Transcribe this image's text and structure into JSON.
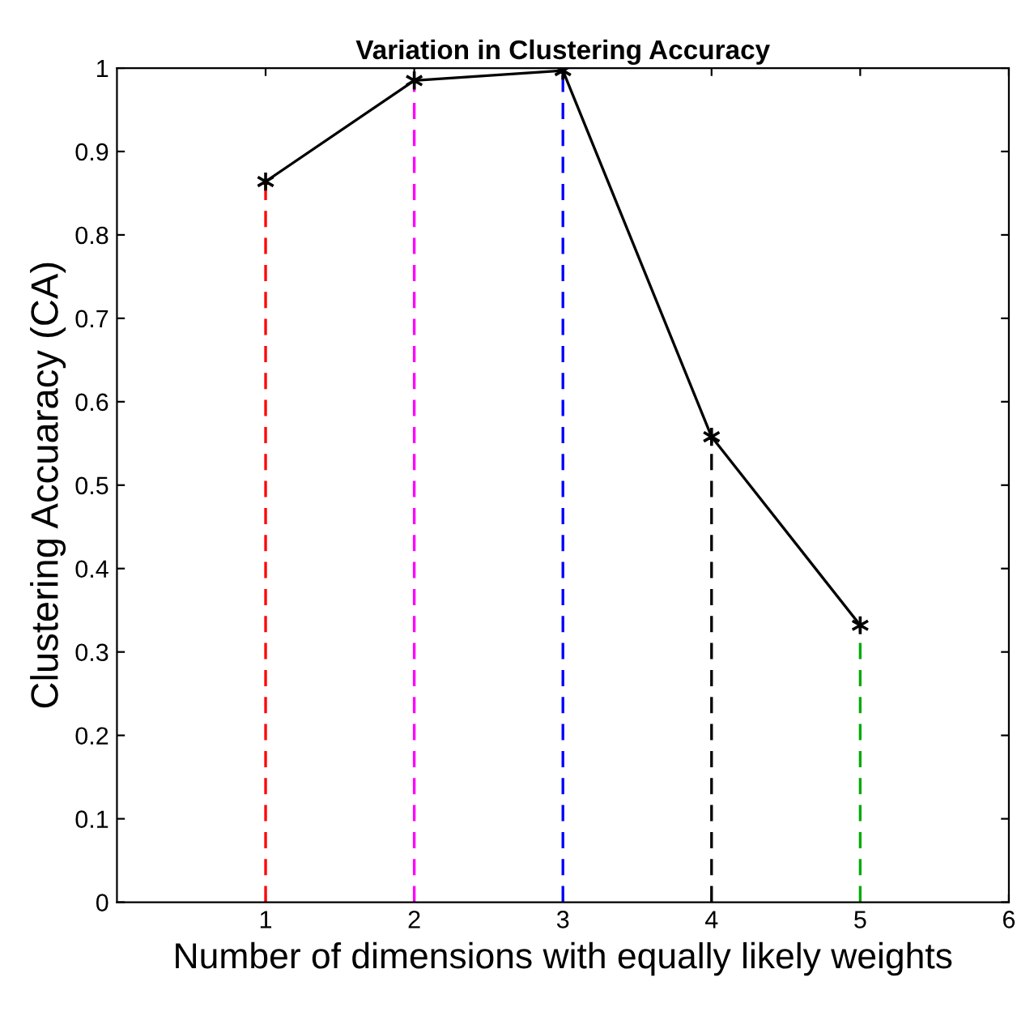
{
  "chart_data": {
    "type": "line",
    "title": "Variation in Clustering Accuracy",
    "xlabel": "Number of dimensions with equally likely weights",
    "ylabel": "Clustering Accuaracy (CA)",
    "x": [
      1,
      2,
      3,
      4,
      5
    ],
    "series": [
      {
        "color": "#000000",
        "marker": "cross",
        "line_style": "solid",
        "values": [
          0.864,
          0.985,
          0.997,
          0.558,
          0.332
        ]
      },
      {
        "color": "#ff0000",
        "marker": "none",
        "line_style": "dashed",
        "x": [
          1,
          1
        ],
        "values": [
          0,
          0.864
        ]
      },
      {
        "color": "#ff00ff",
        "marker": "none",
        "line_style": "dashed",
        "x": [
          2,
          2
        ],
        "values": [
          0,
          0.985
        ]
      },
      {
        "color": "#0000ff",
        "marker": "none",
        "line_style": "dashed",
        "x": [
          3,
          3
        ],
        "values": [
          0,
          0.997
        ]
      },
      {
        "color": "#000000",
        "marker": "none",
        "line_style": "dashed",
        "x": [
          4,
          4
        ],
        "values": [
          0,
          0.558
        ]
      },
      {
        "color": "#00aa00",
        "marker": "none",
        "line_style": "dashed",
        "x": [
          5,
          5
        ],
        "values": [
          0,
          0.332
        ]
      }
    ],
    "xlim": [
      0,
      6
    ],
    "xticks": [
      1,
      2,
      3,
      4,
      5,
      6
    ],
    "ylim": [
      0,
      1
    ],
    "yticks": [
      0,
      0.1,
      0.2,
      0.3,
      0.4,
      0.5,
      0.6,
      0.7,
      0.8,
      0.9,
      1
    ],
    "grid": false
  }
}
